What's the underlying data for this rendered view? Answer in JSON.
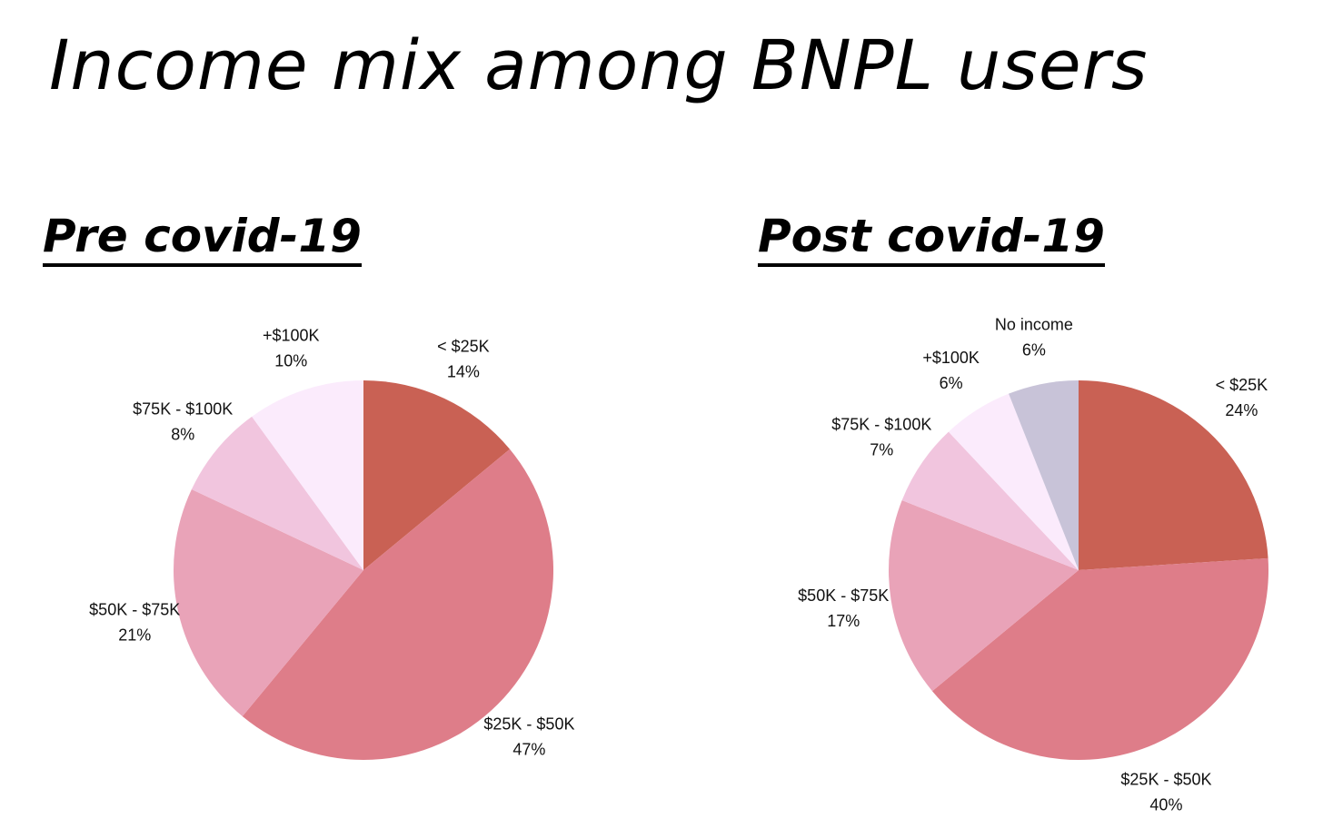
{
  "title": "Income mix among BNPL users",
  "chart_data": [
    {
      "type": "pie",
      "title": "Pre covid-19",
      "slices": [
        {
          "label": "< $25K",
          "value": 14,
          "value_label": "14%",
          "color": "#c96154"
        },
        {
          "label": "$25K - $50K",
          "value": 47,
          "value_label": "47%",
          "color": "#de7d89"
        },
        {
          "label": "$50K - $75K",
          "value": 21,
          "value_label": "21%",
          "color": "#e9a3b8"
        },
        {
          "label": "$75K - $100K",
          "value": 8,
          "value_label": "8%",
          "color": "#f1c5de"
        },
        {
          "label": "+$100K",
          "value": 10,
          "value_label": "10%",
          "color": "#fbebfc"
        }
      ]
    },
    {
      "type": "pie",
      "title": "Post covid-19",
      "slices": [
        {
          "label": "< $25K",
          "value": 24,
          "value_label": "24%",
          "color": "#c96154"
        },
        {
          "label": "$25K - $50K",
          "value": 40,
          "value_label": "40%",
          "color": "#de7d89"
        },
        {
          "label": "$50K - $75K",
          "value": 17,
          "value_label": "17%",
          "color": "#e9a3b8"
        },
        {
          "label": "$75K - $100K",
          "value": 7,
          "value_label": "7%",
          "color": "#f1c5de"
        },
        {
          "label": "+$100K",
          "value": 6,
          "value_label": "6%",
          "color": "#fbebfc"
        },
        {
          "label": "No income",
          "value": 6,
          "value_label": "6%",
          "color": "#c8c3d8"
        }
      ]
    }
  ]
}
